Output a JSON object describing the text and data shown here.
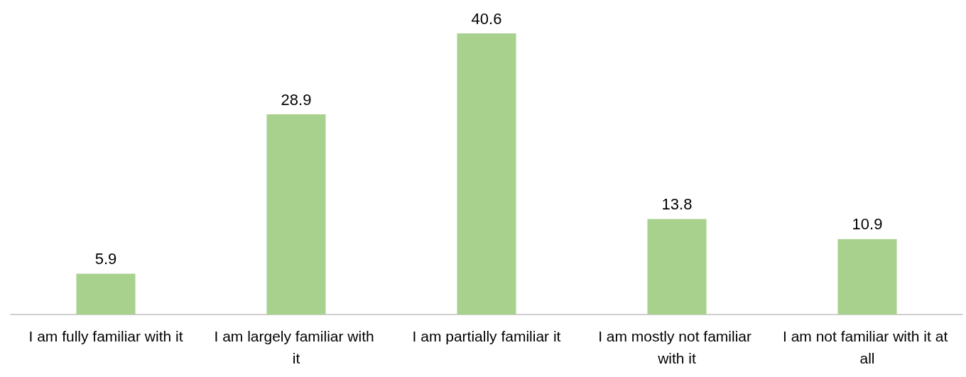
{
  "chart_data": {
    "type": "bar",
    "categories": [
      "I am fully familiar with it",
      "I am largely familiar with it",
      "I am partially familiar it",
      "I am mostly not familiar with it",
      "I am not familiar with it at all"
    ],
    "values": [
      5.9,
      28.9,
      40.6,
      13.8,
      10.9
    ],
    "color": "#a9d18e",
    "data_labels": true
  }
}
